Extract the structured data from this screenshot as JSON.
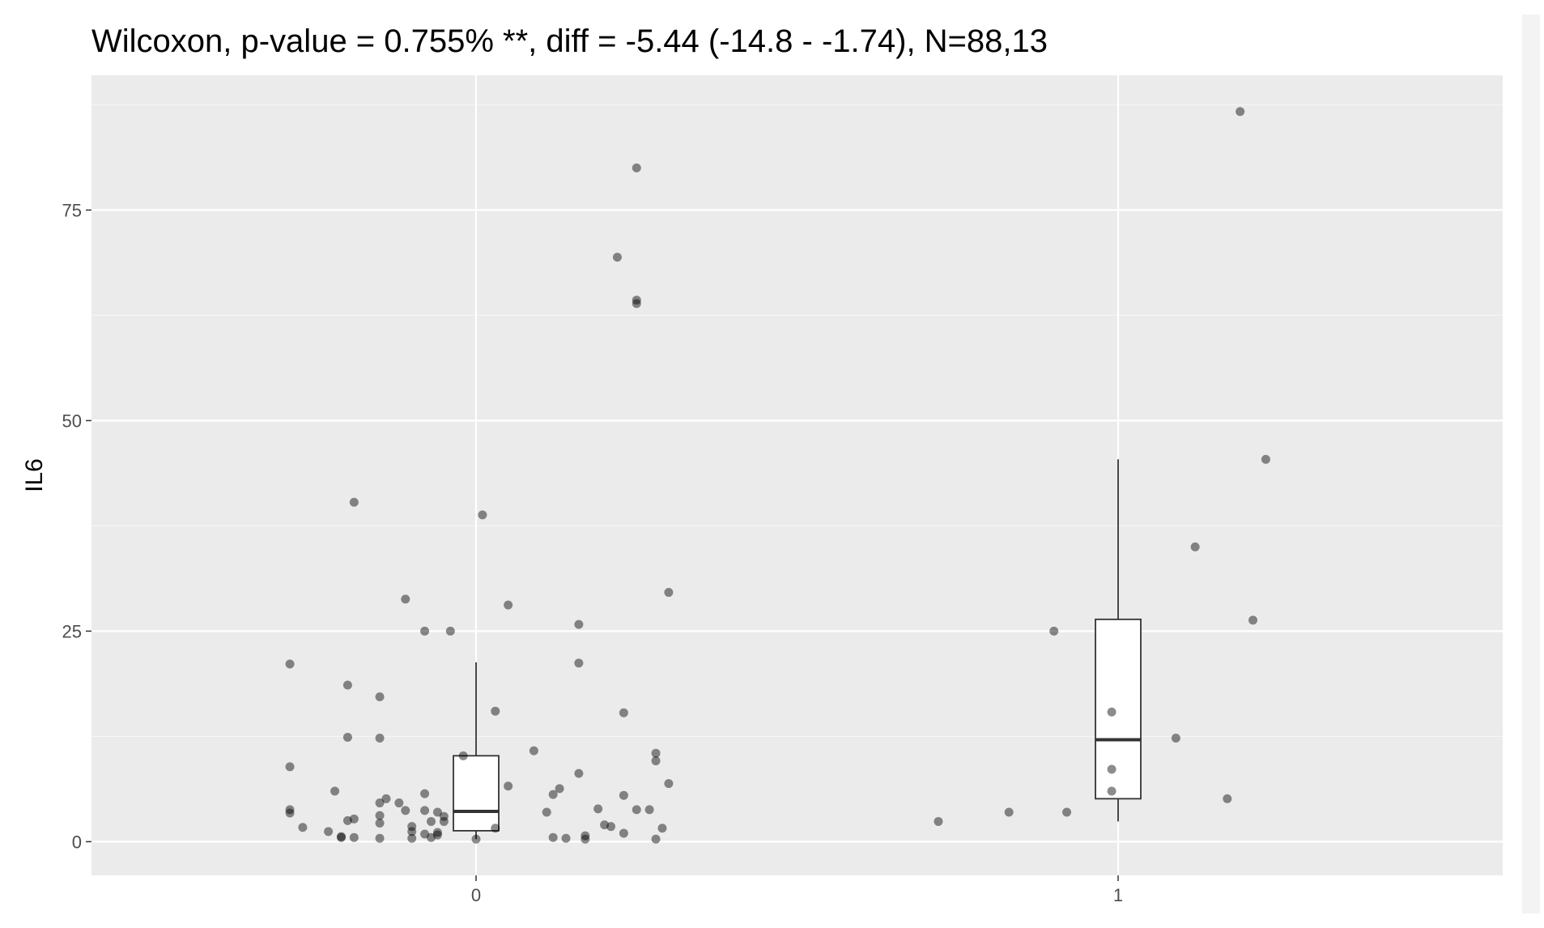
{
  "chart_data": {
    "type": "box+jitter",
    "title": "Wilcoxon, p-value = 0.755% **, diff = -5.44 (-14.8 - -1.74), N=88,13",
    "xlabel": "",
    "ylabel": "IL6",
    "categories": [
      "0",
      "1"
    ],
    "ylim": [
      -4,
      91
    ],
    "y_ticks": [
      0,
      25,
      50,
      75
    ],
    "y_tick_labels": [
      "0",
      "25",
      "50",
      "75"
    ],
    "grid": true,
    "colors": {
      "panel_background": "#ebebeb",
      "grid_major": "#ffffff",
      "grid_minor": "#f5f5f5",
      "point": "#000000",
      "box_fill": "#ffffff",
      "box_line": "#333333"
    },
    "boxes": [
      {
        "category": "0",
        "lower_whisker": 0.3,
        "q1": 1.3,
        "median": 3.6,
        "q3": 10.2,
        "upper_whisker": 21.3
      },
      {
        "category": "1",
        "lower_whisker": 2.4,
        "q1": 5.1,
        "median": 12.1,
        "q3": 26.4,
        "upper_whisker": 45.4
      }
    ],
    "points": [
      {
        "x": -0.29,
        "y": 21.1
      },
      {
        "x": -0.29,
        "y": 8.9
      },
      {
        "x": -0.29,
        "y": 3.8
      },
      {
        "x": -0.29,
        "y": 3.4
      },
      {
        "x": -0.27,
        "y": 1.7
      },
      {
        "x": -0.23,
        "y": 1.2
      },
      {
        "x": -0.22,
        "y": 6.0
      },
      {
        "x": -0.21,
        "y": 0.5
      },
      {
        "x": -0.21,
        "y": 0.6
      },
      {
        "x": -0.2,
        "y": 2.5
      },
      {
        "x": -0.2,
        "y": 18.6
      },
      {
        "x": -0.2,
        "y": 12.4
      },
      {
        "x": -0.19,
        "y": 40.3
      },
      {
        "x": -0.19,
        "y": 2.7
      },
      {
        "x": -0.19,
        "y": 0.5
      },
      {
        "x": -0.15,
        "y": 4.6
      },
      {
        "x": -0.15,
        "y": 2.2
      },
      {
        "x": -0.15,
        "y": 0.4
      },
      {
        "x": -0.15,
        "y": 17.2
      },
      {
        "x": -0.15,
        "y": 12.3
      },
      {
        "x": -0.15,
        "y": 3.1
      },
      {
        "x": -0.14,
        "y": 5.1
      },
      {
        "x": -0.12,
        "y": 4.6
      },
      {
        "x": -0.11,
        "y": 3.7
      },
      {
        "x": -0.11,
        "y": 28.8
      },
      {
        "x": -0.1,
        "y": 1.2
      },
      {
        "x": -0.1,
        "y": 0.4
      },
      {
        "x": -0.1,
        "y": 1.8
      },
      {
        "x": -0.08,
        "y": 0.9
      },
      {
        "x": -0.08,
        "y": 3.7
      },
      {
        "x": -0.08,
        "y": 5.7
      },
      {
        "x": -0.08,
        "y": 25.0
      },
      {
        "x": -0.07,
        "y": 2.4
      },
      {
        "x": -0.07,
        "y": 0.5
      },
      {
        "x": -0.06,
        "y": 3.5
      },
      {
        "x": -0.06,
        "y": 1.1
      },
      {
        "x": -0.06,
        "y": 0.8
      },
      {
        "x": -0.05,
        "y": 3.0
      },
      {
        "x": -0.05,
        "y": 2.4
      },
      {
        "x": -0.04,
        "y": 25.0
      },
      {
        "x": -0.02,
        "y": 10.2
      },
      {
        "x": 0.0,
        "y": 0.3
      },
      {
        "x": 0.01,
        "y": 38.8
      },
      {
        "x": 0.03,
        "y": 15.5
      },
      {
        "x": 0.03,
        "y": 1.6
      },
      {
        "x": 0.05,
        "y": 28.1
      },
      {
        "x": 0.05,
        "y": 6.6
      },
      {
        "x": 0.09,
        "y": 10.8
      },
      {
        "x": 0.11,
        "y": 3.5
      },
      {
        "x": 0.12,
        "y": 5.6
      },
      {
        "x": 0.12,
        "y": 0.5
      },
      {
        "x": 0.13,
        "y": 6.3
      },
      {
        "x": 0.14,
        "y": 0.4
      },
      {
        "x": 0.16,
        "y": 25.8
      },
      {
        "x": 0.16,
        "y": 21.2
      },
      {
        "x": 0.16,
        "y": 8.1
      },
      {
        "x": 0.17,
        "y": 0.7
      },
      {
        "x": 0.17,
        "y": 0.3
      },
      {
        "x": 0.19,
        "y": 3.9
      },
      {
        "x": 0.2,
        "y": 2.0
      },
      {
        "x": 0.21,
        "y": 1.8
      },
      {
        "x": 0.22,
        "y": 69.4
      },
      {
        "x": 0.23,
        "y": 15.3
      },
      {
        "x": 0.23,
        "y": 5.5
      },
      {
        "x": 0.23,
        "y": 1.0
      },
      {
        "x": 0.25,
        "y": 80.0
      },
      {
        "x": 0.25,
        "y": 63.9
      },
      {
        "x": 0.25,
        "y": 64.3
      },
      {
        "x": 0.25,
        "y": 3.8
      },
      {
        "x": 0.27,
        "y": 3.8
      },
      {
        "x": 0.28,
        "y": 0.3
      },
      {
        "x": 0.28,
        "y": 10.5
      },
      {
        "x": 0.28,
        "y": 9.6
      },
      {
        "x": 0.29,
        "y": 1.6
      },
      {
        "x": 0.3,
        "y": 29.6
      },
      {
        "x": 0.3,
        "y": 6.9
      },
      {
        "x": 0.72,
        "y": 2.4
      },
      {
        "x": 0.83,
        "y": 3.5
      },
      {
        "x": 0.9,
        "y": 25.0
      },
      {
        "x": 0.92,
        "y": 3.5
      },
      {
        "x": 0.99,
        "y": 15.4
      },
      {
        "x": 0.99,
        "y": 8.6
      },
      {
        "x": 0.99,
        "y": 6.0
      },
      {
        "x": 1.09,
        "y": 12.3
      },
      {
        "x": 1.12,
        "y": 35.0
      },
      {
        "x": 1.17,
        "y": 5.1
      },
      {
        "x": 1.19,
        "y": 86.7
      },
      {
        "x": 1.21,
        "y": 26.3
      },
      {
        "x": 1.23,
        "y": 45.4
      }
    ]
  }
}
